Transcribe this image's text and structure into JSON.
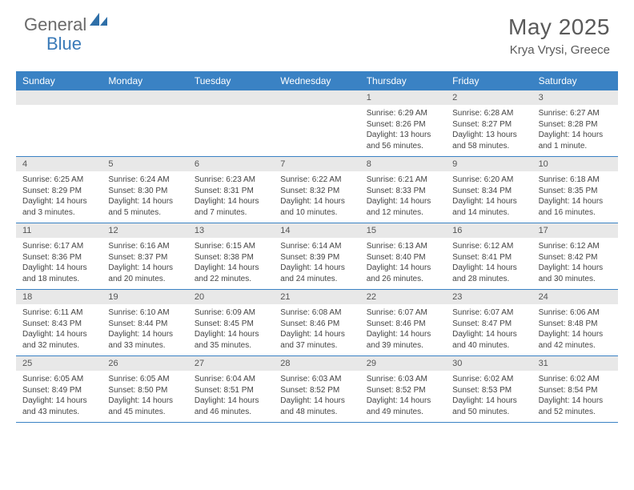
{
  "logo": {
    "text1": "General",
    "text2": "Blue",
    "text_color": "#6a6a6a",
    "accent_color": "#3a7ab8"
  },
  "title": "May 2025",
  "location": "Krya Vrysi, Greece",
  "colors": {
    "header_bar": "#3a82c4",
    "daynum_bg": "#e8e8e8",
    "week_divider": "#3a82c4",
    "text": "#444444",
    "page_bg": "#ffffff"
  },
  "weekdays": [
    "Sunday",
    "Monday",
    "Tuesday",
    "Wednesday",
    "Thursday",
    "Friday",
    "Saturday"
  ],
  "weeks": [
    [
      {
        "n": "",
        "sunrise": "",
        "sunset": "",
        "daylight": ""
      },
      {
        "n": "",
        "sunrise": "",
        "sunset": "",
        "daylight": ""
      },
      {
        "n": "",
        "sunrise": "",
        "sunset": "",
        "daylight": ""
      },
      {
        "n": "",
        "sunrise": "",
        "sunset": "",
        "daylight": ""
      },
      {
        "n": "1",
        "sunrise": "Sunrise: 6:29 AM",
        "sunset": "Sunset: 8:26 PM",
        "daylight": "Daylight: 13 hours and 56 minutes."
      },
      {
        "n": "2",
        "sunrise": "Sunrise: 6:28 AM",
        "sunset": "Sunset: 8:27 PM",
        "daylight": "Daylight: 13 hours and 58 minutes."
      },
      {
        "n": "3",
        "sunrise": "Sunrise: 6:27 AM",
        "sunset": "Sunset: 8:28 PM",
        "daylight": "Daylight: 14 hours and 1 minute."
      }
    ],
    [
      {
        "n": "4",
        "sunrise": "Sunrise: 6:25 AM",
        "sunset": "Sunset: 8:29 PM",
        "daylight": "Daylight: 14 hours and 3 minutes."
      },
      {
        "n": "5",
        "sunrise": "Sunrise: 6:24 AM",
        "sunset": "Sunset: 8:30 PM",
        "daylight": "Daylight: 14 hours and 5 minutes."
      },
      {
        "n": "6",
        "sunrise": "Sunrise: 6:23 AM",
        "sunset": "Sunset: 8:31 PM",
        "daylight": "Daylight: 14 hours and 7 minutes."
      },
      {
        "n": "7",
        "sunrise": "Sunrise: 6:22 AM",
        "sunset": "Sunset: 8:32 PM",
        "daylight": "Daylight: 14 hours and 10 minutes."
      },
      {
        "n": "8",
        "sunrise": "Sunrise: 6:21 AM",
        "sunset": "Sunset: 8:33 PM",
        "daylight": "Daylight: 14 hours and 12 minutes."
      },
      {
        "n": "9",
        "sunrise": "Sunrise: 6:20 AM",
        "sunset": "Sunset: 8:34 PM",
        "daylight": "Daylight: 14 hours and 14 minutes."
      },
      {
        "n": "10",
        "sunrise": "Sunrise: 6:18 AM",
        "sunset": "Sunset: 8:35 PM",
        "daylight": "Daylight: 14 hours and 16 minutes."
      }
    ],
    [
      {
        "n": "11",
        "sunrise": "Sunrise: 6:17 AM",
        "sunset": "Sunset: 8:36 PM",
        "daylight": "Daylight: 14 hours and 18 minutes."
      },
      {
        "n": "12",
        "sunrise": "Sunrise: 6:16 AM",
        "sunset": "Sunset: 8:37 PM",
        "daylight": "Daylight: 14 hours and 20 minutes."
      },
      {
        "n": "13",
        "sunrise": "Sunrise: 6:15 AM",
        "sunset": "Sunset: 8:38 PM",
        "daylight": "Daylight: 14 hours and 22 minutes."
      },
      {
        "n": "14",
        "sunrise": "Sunrise: 6:14 AM",
        "sunset": "Sunset: 8:39 PM",
        "daylight": "Daylight: 14 hours and 24 minutes."
      },
      {
        "n": "15",
        "sunrise": "Sunrise: 6:13 AM",
        "sunset": "Sunset: 8:40 PM",
        "daylight": "Daylight: 14 hours and 26 minutes."
      },
      {
        "n": "16",
        "sunrise": "Sunrise: 6:12 AM",
        "sunset": "Sunset: 8:41 PM",
        "daylight": "Daylight: 14 hours and 28 minutes."
      },
      {
        "n": "17",
        "sunrise": "Sunrise: 6:12 AM",
        "sunset": "Sunset: 8:42 PM",
        "daylight": "Daylight: 14 hours and 30 minutes."
      }
    ],
    [
      {
        "n": "18",
        "sunrise": "Sunrise: 6:11 AM",
        "sunset": "Sunset: 8:43 PM",
        "daylight": "Daylight: 14 hours and 32 minutes."
      },
      {
        "n": "19",
        "sunrise": "Sunrise: 6:10 AM",
        "sunset": "Sunset: 8:44 PM",
        "daylight": "Daylight: 14 hours and 33 minutes."
      },
      {
        "n": "20",
        "sunrise": "Sunrise: 6:09 AM",
        "sunset": "Sunset: 8:45 PM",
        "daylight": "Daylight: 14 hours and 35 minutes."
      },
      {
        "n": "21",
        "sunrise": "Sunrise: 6:08 AM",
        "sunset": "Sunset: 8:46 PM",
        "daylight": "Daylight: 14 hours and 37 minutes."
      },
      {
        "n": "22",
        "sunrise": "Sunrise: 6:07 AM",
        "sunset": "Sunset: 8:46 PM",
        "daylight": "Daylight: 14 hours and 39 minutes."
      },
      {
        "n": "23",
        "sunrise": "Sunrise: 6:07 AM",
        "sunset": "Sunset: 8:47 PM",
        "daylight": "Daylight: 14 hours and 40 minutes."
      },
      {
        "n": "24",
        "sunrise": "Sunrise: 6:06 AM",
        "sunset": "Sunset: 8:48 PM",
        "daylight": "Daylight: 14 hours and 42 minutes."
      }
    ],
    [
      {
        "n": "25",
        "sunrise": "Sunrise: 6:05 AM",
        "sunset": "Sunset: 8:49 PM",
        "daylight": "Daylight: 14 hours and 43 minutes."
      },
      {
        "n": "26",
        "sunrise": "Sunrise: 6:05 AM",
        "sunset": "Sunset: 8:50 PM",
        "daylight": "Daylight: 14 hours and 45 minutes."
      },
      {
        "n": "27",
        "sunrise": "Sunrise: 6:04 AM",
        "sunset": "Sunset: 8:51 PM",
        "daylight": "Daylight: 14 hours and 46 minutes."
      },
      {
        "n": "28",
        "sunrise": "Sunrise: 6:03 AM",
        "sunset": "Sunset: 8:52 PM",
        "daylight": "Daylight: 14 hours and 48 minutes."
      },
      {
        "n": "29",
        "sunrise": "Sunrise: 6:03 AM",
        "sunset": "Sunset: 8:52 PM",
        "daylight": "Daylight: 14 hours and 49 minutes."
      },
      {
        "n": "30",
        "sunrise": "Sunrise: 6:02 AM",
        "sunset": "Sunset: 8:53 PM",
        "daylight": "Daylight: 14 hours and 50 minutes."
      },
      {
        "n": "31",
        "sunrise": "Sunrise: 6:02 AM",
        "sunset": "Sunset: 8:54 PM",
        "daylight": "Daylight: 14 hours and 52 minutes."
      }
    ]
  ]
}
